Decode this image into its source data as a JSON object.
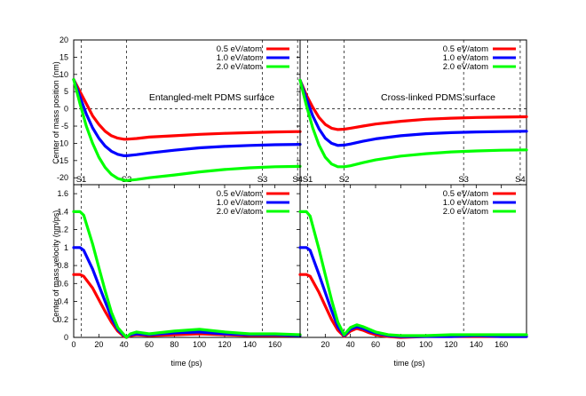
{
  "figure": {
    "ylabels": {
      "position": "Center of mass position (nm)",
      "velocity": "Center of mass velocity (nm/ps)"
    },
    "xlabel": "time (ps)",
    "legend_labels": [
      "0.5 eV/atom",
      "1.0 eV/atom",
      "2.0 eV/atom"
    ],
    "series_colors": [
      "#ff0000",
      "#0000ff",
      "#00ff00"
    ]
  },
  "chart_data": [
    {
      "type": "line",
      "title": "",
      "annotation": "Entangled-melt PDMS surface",
      "xlabel": "",
      "ylabel": "Center of mass position (nm)",
      "xlim": [
        0,
        180
      ],
      "ylim": [
        -22,
        20
      ],
      "xticks": [],
      "yticks": [
        20,
        15,
        10,
        5,
        0,
        -5,
        -10,
        -15,
        -20
      ],
      "grid": false,
      "legend": "top-right",
      "stage_markers": [
        {
          "x": 6,
          "label": "S1"
        },
        {
          "x": 42,
          "label": "S2"
        },
        {
          "x": 150,
          "label": "S3"
        },
        {
          "x": 178,
          "label": "S4"
        }
      ],
      "hline": 0,
      "x": [
        0,
        5,
        10,
        15,
        20,
        25,
        30,
        35,
        40,
        42,
        50,
        60,
        80,
        100,
        120,
        140,
        160,
        180
      ],
      "series": [
        {
          "name": "0.5 eV/atom",
          "color": "#ff0000",
          "values": [
            8.5,
            5,
            1.5,
            -2,
            -4.5,
            -6.5,
            -7.8,
            -8.5,
            -8.8,
            -8.8,
            -8.6,
            -8.2,
            -7.8,
            -7.4,
            -7.1,
            -6.9,
            -6.7,
            -6.6
          ]
        },
        {
          "name": "1.0 eV/atom",
          "color": "#0000ff",
          "values": [
            8.5,
            3.5,
            -1.5,
            -5.5,
            -8.5,
            -10.8,
            -12.3,
            -13.2,
            -13.6,
            -13.6,
            -13.3,
            -12.8,
            -12.0,
            -11.3,
            -10.9,
            -10.6,
            -10.4,
            -10.3
          ]
        },
        {
          "name": "2.0 eV/atom",
          "color": "#00ff00",
          "values": [
            8.5,
            1.5,
            -5,
            -10,
            -14,
            -17,
            -19,
            -20.2,
            -20.7,
            -20.8,
            -20.5,
            -20.0,
            -19.2,
            -18.3,
            -17.6,
            -17.1,
            -16.8,
            -16.7
          ]
        }
      ]
    },
    {
      "type": "line",
      "title": "",
      "annotation": "Cross-linked PDMS surface",
      "xlabel": "",
      "ylabel": "",
      "xlim": [
        0,
        180
      ],
      "ylim": [
        -22,
        20
      ],
      "xticks": [],
      "yticks": [],
      "grid": false,
      "legend": "top-right",
      "stage_markers": [
        {
          "x": 6,
          "label": "S1"
        },
        {
          "x": 35,
          "label": "S2"
        },
        {
          "x": 130,
          "label": "S3"
        },
        {
          "x": 175,
          "label": "S4"
        }
      ],
      "hline": 0,
      "x": [
        0,
        5,
        10,
        15,
        20,
        25,
        30,
        35,
        40,
        50,
        60,
        80,
        100,
        120,
        140,
        160,
        180
      ],
      "series": [
        {
          "name": "0.5 eV/atom",
          "color": "#ff0000",
          "values": [
            8.3,
            4,
            0.5,
            -2.5,
            -4.5,
            -5.6,
            -6.0,
            -5.9,
            -5.6,
            -5.0,
            -4.4,
            -3.6,
            -3.0,
            -2.7,
            -2.5,
            -2.4,
            -2.3
          ]
        },
        {
          "name": "1.0 eV/atom",
          "color": "#0000ff",
          "values": [
            8.3,
            3,
            -2,
            -5.8,
            -8.5,
            -10.0,
            -10.6,
            -10.5,
            -10.2,
            -9.4,
            -8.7,
            -7.8,
            -7.2,
            -6.9,
            -6.7,
            -6.6,
            -6.5
          ]
        },
        {
          "name": "2.0 eV/atom",
          "color": "#00ff00",
          "values": [
            8.3,
            1,
            -5.5,
            -10.5,
            -14,
            -16,
            -16.8,
            -16.8,
            -16.5,
            -15.6,
            -14.8,
            -13.7,
            -13.0,
            -12.5,
            -12.2,
            -12.0,
            -11.9
          ]
        }
      ]
    },
    {
      "type": "line",
      "title": "",
      "annotation": "",
      "xlabel": "time (ps)",
      "ylabel": "Center of mass velocity (nm/ps)",
      "xlim": [
        0,
        180
      ],
      "ylim": [
        0,
        1.7
      ],
      "xticks": [
        0,
        20,
        40,
        60,
        80,
        100,
        120,
        140,
        160
      ],
      "yticks": [
        0,
        0.2,
        0.4,
        0.6,
        0.8,
        1,
        1.2,
        1.4,
        1.6
      ],
      "grid": false,
      "legend": "top-right",
      "stage_markers": [
        {
          "x": 6,
          "label": ""
        },
        {
          "x": 42,
          "label": ""
        },
        {
          "x": 150,
          "label": ""
        }
      ],
      "x": [
        0,
        5,
        8,
        15,
        20,
        25,
        30,
        35,
        40,
        42,
        45,
        50,
        60,
        80,
        100,
        120,
        140,
        160,
        180
      ],
      "series": [
        {
          "name": "0.5 eV/atom",
          "color": "#ff0000",
          "values": [
            0.7,
            0.7,
            0.68,
            0.55,
            0.42,
            0.29,
            0.17,
            0.07,
            0.01,
            0.0,
            0.02,
            0.03,
            0.02,
            0.03,
            0.04,
            0.03,
            0.02,
            0.02,
            0.02
          ]
        },
        {
          "name": "1.0 eV/atom",
          "color": "#0000ff",
          "values": [
            1.0,
            1.0,
            0.97,
            0.76,
            0.58,
            0.4,
            0.22,
            0.09,
            0.02,
            0.0,
            0.03,
            0.04,
            0.03,
            0.05,
            0.06,
            0.04,
            0.03,
            0.03,
            0.02
          ]
        },
        {
          "name": "2.0 eV/atom",
          "color": "#00ff00",
          "values": [
            1.4,
            1.4,
            1.36,
            1.04,
            0.78,
            0.52,
            0.28,
            0.11,
            0.03,
            0.0,
            0.04,
            0.06,
            0.04,
            0.07,
            0.09,
            0.06,
            0.04,
            0.04,
            0.03
          ]
        }
      ]
    },
    {
      "type": "line",
      "title": "",
      "annotation": "",
      "xlabel": "time (ps)",
      "ylabel": "",
      "xlim": [
        0,
        180
      ],
      "ylim": [
        0,
        1.7
      ],
      "xticks": [
        20,
        40,
        60,
        80,
        100,
        120,
        140,
        160
      ],
      "yticks": [],
      "grid": false,
      "legend": "top-right",
      "stage_markers": [
        {
          "x": 6,
          "label": ""
        },
        {
          "x": 35,
          "label": ""
        },
        {
          "x": 130,
          "label": ""
        }
      ],
      "x": [
        0,
        5,
        8,
        15,
        20,
        25,
        30,
        35,
        40,
        45,
        50,
        55,
        60,
        70,
        80,
        100,
        120,
        140,
        160,
        180
      ],
      "series": [
        {
          "name": "0.5 eV/atom",
          "color": "#ff0000",
          "values": [
            0.7,
            0.7,
            0.68,
            0.5,
            0.35,
            0.2,
            0.08,
            0.01,
            0.07,
            0.1,
            0.08,
            0.05,
            0.03,
            0.01,
            0.0,
            0.01,
            0.01,
            0.01,
            0.01,
            0.01
          ]
        },
        {
          "name": "1.0 eV/atom",
          "color": "#0000ff",
          "values": [
            1.0,
            1.0,
            0.97,
            0.7,
            0.5,
            0.3,
            0.12,
            0.02,
            0.09,
            0.12,
            0.1,
            0.07,
            0.05,
            0.02,
            0.01,
            0.01,
            0.01,
            0.02,
            0.01,
            0.01
          ]
        },
        {
          "name": "2.0 eV/atom",
          "color": "#00ff00",
          "values": [
            1.4,
            1.4,
            1.35,
            0.98,
            0.7,
            0.42,
            0.17,
            0.03,
            0.11,
            0.14,
            0.12,
            0.09,
            0.06,
            0.03,
            0.02,
            0.02,
            0.03,
            0.03,
            0.03,
            0.03
          ]
        }
      ]
    }
  ]
}
